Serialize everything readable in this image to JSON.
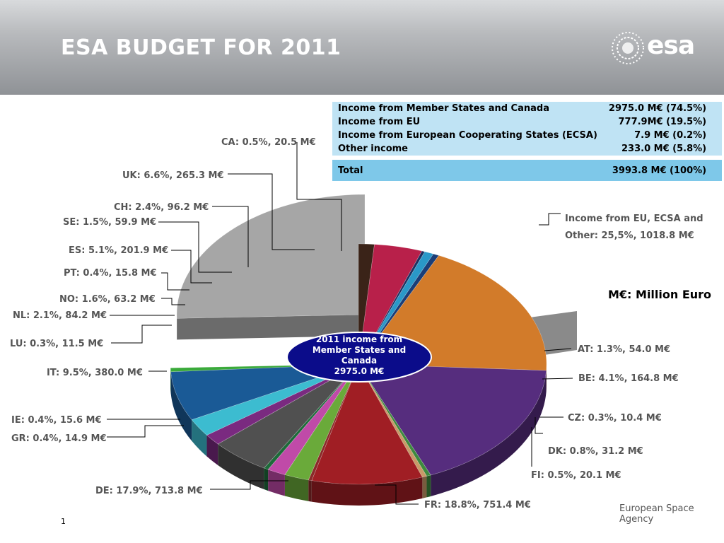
{
  "slide": {
    "title": "ESA BUDGET FOR 2011",
    "logo_text": "esa",
    "agency": "European Space Agency",
    "page_number": "1",
    "unit_note": "M€: Million Euro"
  },
  "income_table": {
    "rows": [
      {
        "label": "Income from Member States and Canada",
        "value": "2975.0 M€ (74.5%)"
      },
      {
        "label": "Income from EU",
        "value": "777.9M€ (19.5%)"
      },
      {
        "label": "Income from European Cooperating States (ECSA)",
        "value": "7.9 M€ (0.2%)"
      },
      {
        "label": "Other income",
        "value": "233.0 M€ (5.8%)"
      }
    ],
    "total": {
      "label": "Total",
      "value": "3993.8 M€ (100%)"
    }
  },
  "chart_data": {
    "type": "pie",
    "center_label": [
      "2011 income from",
      "Member States and",
      "Canada",
      "2975.0 M€"
    ],
    "unit": "M€",
    "slices": [
      {
        "code": "AT",
        "label": "AT: 1.3%, 54.0 M€",
        "percent": 1.3,
        "value": 54.0,
        "color": "#3a2318"
      },
      {
        "code": "BE",
        "label": "BE: 4.1%, 164.8 M€",
        "percent": 4.1,
        "value": 164.8,
        "color": "#b8204a"
      },
      {
        "code": "CZ",
        "label": "CZ: 0.3%, 10.4 M€",
        "percent": 0.3,
        "value": 10.4,
        "color": "#1c3060"
      },
      {
        "code": "DK",
        "label": "DK: 0.8%, 31.2 M€",
        "percent": 0.8,
        "value": 31.2,
        "color": "#2a98c8"
      },
      {
        "code": "FI",
        "label": "FI: 0.5%, 20.1 M€",
        "percent": 0.5,
        "value": 20.1,
        "color": "#1a3e78"
      },
      {
        "code": "FR",
        "label": "FR: 18.8%, 751.4 M€",
        "percent": 18.8,
        "value": 751.4,
        "color": "#d27b2a"
      },
      {
        "code": "DE",
        "label": "DE: 17.9%, 713.8 M€",
        "percent": 17.9,
        "value": 713.8,
        "color": "#562d7e"
      },
      {
        "code": "GR",
        "label": "GR: 0.4%, 14.9 M€",
        "percent": 0.4,
        "value": 14.9,
        "color": "#3e8a3e"
      },
      {
        "code": "IE",
        "label": "IE: 0.4%, 15.6 M€",
        "percent": 0.4,
        "value": 15.6,
        "color": "#c89a68"
      },
      {
        "code": "IT",
        "label": "IT: 9.5%, 380.0 M€",
        "percent": 9.5,
        "value": 380.0,
        "color": "#a01e24"
      },
      {
        "code": "LU",
        "label": "LU:  0.3%, 11.5 M€",
        "percent": 0.3,
        "value": 11.5,
        "color": "#8a2a2a"
      },
      {
        "code": "NL",
        "label": "NL: 2.1%, 84.2 M€",
        "percent": 2.1,
        "value": 84.2,
        "color": "#6aaa3a"
      },
      {
        "code": "NO",
        "label": "NO: 1.6%, 63.2 M€",
        "percent": 1.6,
        "value": 63.2,
        "color": "#c04aa8"
      },
      {
        "code": "PT",
        "label": "PT: 0.4%, 15.8 M€",
        "percent": 0.4,
        "value": 15.8,
        "color": "#1e6a3a"
      },
      {
        "code": "ES",
        "label": "ES: 5.1%, 201.9 M€",
        "percent": 5.1,
        "value": 201.9,
        "color": "#505050"
      },
      {
        "code": "SE",
        "label": "SE: 1.5%, 59.9 M€",
        "percent": 1.5,
        "value": 59.9,
        "color": "#7a2a80"
      },
      {
        "code": "CH",
        "label": "CH: 2.4%, 96.2 M€",
        "percent": 2.4,
        "value": 96.2,
        "color": "#3cbcd0"
      },
      {
        "code": "UK",
        "label": "UK: 6.6%, 265.3 M€",
        "percent": 6.6,
        "value": 265.3,
        "color": "#1a5a96"
      },
      {
        "code": "CA",
        "label": "CA: 0.5%, 20.5 M€",
        "percent": 0.5,
        "value": 20.5,
        "color": "#3aaa3a"
      }
    ],
    "exploded_slice": {
      "label_lines": [
        "Income from EU, ECSA and",
        "Other: 25,5%, 1018.8 M€"
      ],
      "percent": 25.5,
      "value": 1018.8,
      "color": "#a6a6a6"
    }
  }
}
